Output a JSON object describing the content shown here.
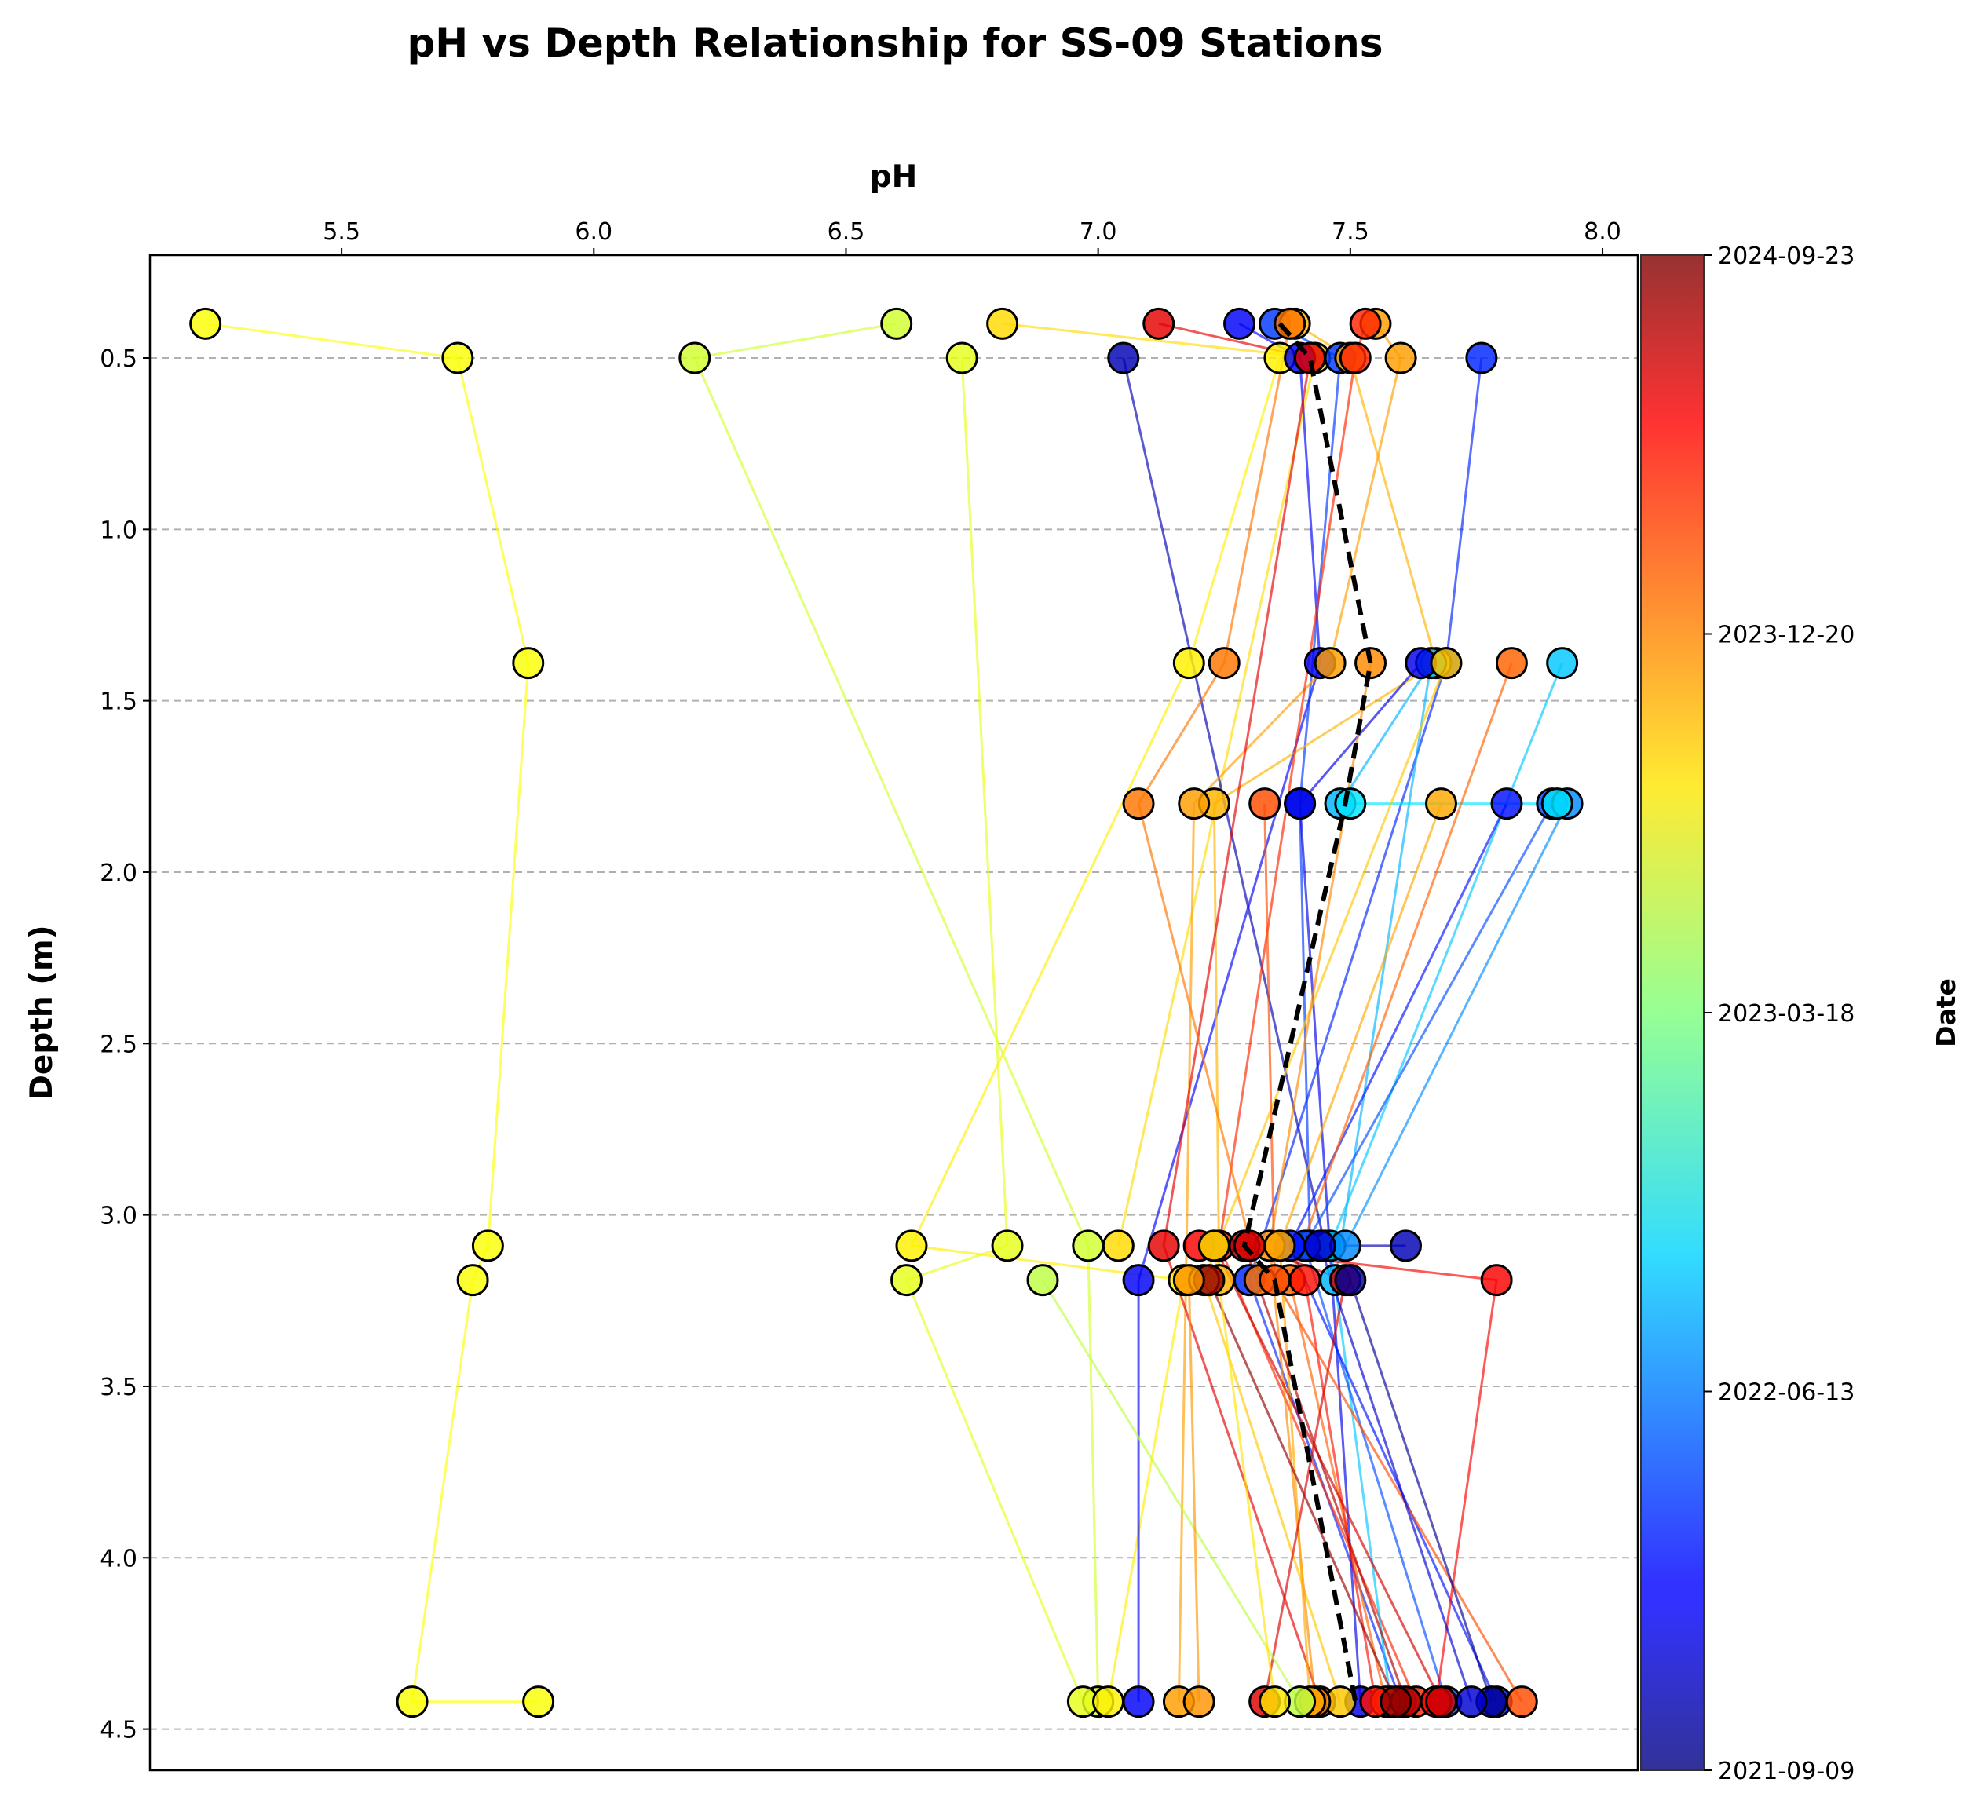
{
  "chart_data": {
    "type": "scatter",
    "title": "pH vs Depth Relationship for SS-09 Stations",
    "xlabel": "pH",
    "ylabel": "Depth (m)",
    "colorbar_label": "Date",
    "xlim": [
      5.12,
      8.07
    ],
    "ylim": [
      4.62,
      0.2
    ],
    "x_ticks": [
      "5.5",
      "6.0",
      "6.5",
      "7.0",
      "7.5",
      "8.0"
    ],
    "y_ticks": [
      "0.5",
      "1.0",
      "1.5",
      "2.0",
      "2.5",
      "3.0",
      "3.5",
      "4.0",
      "4.5"
    ],
    "x_axis_position": "top",
    "y_axis_inverted": true,
    "grid": "horizontal dashed",
    "colormap": "jet",
    "colorbar_ticks": [
      "2021-09-09",
      "2022-06-13",
      "2023-03-18",
      "2023-12-20",
      "2024-09-23"
    ],
    "mean_profile": {
      "style": "black dashed",
      "points": [
        [
          7.36,
          0.4
        ],
        [
          7.42,
          0.5
        ],
        [
          7.54,
          1.39
        ],
        [
          7.49,
          1.8
        ],
        [
          7.29,
          3.09
        ],
        [
          7.35,
          3.19
        ],
        [
          7.51,
          4.42
        ]
      ]
    },
    "profiles": [
      {
        "t": 0.62,
        "points": [
          [
            5.23,
            0.4
          ],
          [
            5.73,
            0.5
          ],
          [
            5.87,
            1.39
          ],
          [
            5.79,
            3.09
          ],
          [
            5.76,
            3.19
          ],
          [
            5.64,
            4.42
          ],
          [
            5.89,
            4.42
          ]
        ]
      },
      {
        "t": 0.58,
        "points": [
          [
            6.6,
            0.4
          ],
          [
            6.2,
            0.5
          ],
          [
            6.98,
            3.09
          ],
          [
            7.0,
            4.42
          ]
        ]
      },
      {
        "t": 0.6,
        "points": [
          [
            6.73,
            0.5
          ],
          [
            6.82,
            3.09
          ],
          [
            6.62,
            3.19
          ],
          [
            6.97,
            4.42
          ]
        ]
      },
      {
        "t": 0.66,
        "points": [
          [
            6.81,
            0.4
          ],
          [
            7.43,
            0.5
          ],
          [
            7.04,
            3.09
          ]
        ]
      },
      {
        "t": 0.64,
        "points": [
          [
            7.36,
            0.5
          ],
          [
            7.18,
            1.39
          ],
          [
            6.63,
            3.09
          ],
          [
            7.17,
            3.19
          ],
          [
            7.02,
            4.42
          ]
        ]
      },
      {
        "t": 0.05,
        "points": [
          [
            7.05,
            0.5
          ],
          [
            7.45,
            3.09
          ],
          [
            7.61,
            3.09
          ]
        ]
      },
      {
        "t": 0.12,
        "points": [
          [
            7.28,
            0.4
          ],
          [
            7.4,
            0.5
          ],
          [
            7.44,
            1.39
          ],
          [
            7.08,
            3.19
          ],
          [
            7.08,
            4.42
          ]
        ]
      },
      {
        "t": 0.16,
        "points": [
          [
            7.76,
            0.5
          ],
          [
            7.69,
            1.39
          ],
          [
            7.3,
            3.19
          ],
          [
            7.6,
            4.42
          ]
        ]
      },
      {
        "t": 0.18,
        "points": [
          [
            7.35,
            0.4
          ],
          [
            7.48,
            0.5
          ],
          [
            7.4,
            1.8
          ],
          [
            7.42,
            3.09
          ]
        ]
      },
      {
        "t": 0.7,
        "points": [
          [
            7.39,
            0.4
          ],
          [
            7.5,
            0.5
          ],
          [
            7.67,
            1.39
          ],
          [
            7.23,
            1.8
          ],
          [
            7.24,
            3.19
          ]
        ]
      },
      {
        "t": 0.72,
        "points": [
          [
            7.55,
            0.4
          ],
          [
            7.6,
            0.5
          ],
          [
            7.46,
            1.39
          ],
          [
            7.19,
            1.8
          ],
          [
            7.16,
            4.42
          ]
        ]
      },
      {
        "t": 0.9,
        "points": [
          [
            7.12,
            0.4
          ],
          [
            7.42,
            0.5
          ],
          [
            7.13,
            3.09
          ],
          [
            7.44,
            4.42
          ]
        ]
      },
      {
        "t": 0.84,
        "points": [
          [
            7.53,
            0.4
          ],
          [
            7.51,
            0.5
          ],
          [
            7.24,
            3.09
          ],
          [
            7.63,
            4.42
          ]
        ]
      },
      {
        "t": 0.76,
        "points": [
          [
            7.38,
            0.4
          ],
          [
            7.25,
            1.39
          ],
          [
            7.08,
            1.8
          ],
          [
            7.32,
            3.19
          ]
        ]
      },
      {
        "t": 0.3,
        "points": [
          [
            7.48,
            1.8
          ],
          [
            7.66,
            1.39
          ],
          [
            7.47,
            3.19
          ]
        ]
      },
      {
        "t": 0.32,
        "points": [
          [
            7.92,
            1.39
          ],
          [
            7.46,
            3.09
          ],
          [
            7.58,
            4.42
          ]
        ]
      },
      {
        "t": 0.1,
        "points": [
          [
            7.64,
            1.39
          ],
          [
            7.4,
            1.8
          ],
          [
            7.52,
            4.42
          ]
        ]
      },
      {
        "t": 0.2,
        "points": [
          [
            7.9,
            1.8
          ],
          [
            7.41,
            3.09
          ],
          [
            7.69,
            4.42
          ]
        ]
      },
      {
        "t": 0.26,
        "points": [
          [
            7.93,
            1.8
          ],
          [
            7.49,
            3.09
          ]
        ]
      },
      {
        "t": 0.14,
        "points": [
          [
            7.81,
            1.8
          ],
          [
            7.38,
            3.09
          ],
          [
            7.79,
            4.42
          ]
        ]
      },
      {
        "t": 0.35,
        "points": [
          [
            7.5,
            1.8
          ],
          [
            7.91,
            1.8
          ]
        ]
      },
      {
        "t": 0.68,
        "points": [
          [
            7.69,
            1.39
          ],
          [
            7.21,
            3.19
          ],
          [
            7.48,
            4.42
          ]
        ]
      },
      {
        "t": 0.74,
        "points": [
          [
            7.54,
            1.39
          ],
          [
            7.34,
            3.09
          ],
          [
            7.43,
            4.42
          ]
        ]
      },
      {
        "t": 0.78,
        "points": [
          [
            7.82,
            1.39
          ],
          [
            7.38,
            3.19
          ],
          [
            7.57,
            4.42
          ]
        ]
      },
      {
        "t": 0.8,
        "points": [
          [
            7.33,
            1.8
          ],
          [
            7.35,
            3.19
          ],
          [
            7.84,
            4.42
          ]
        ]
      },
      {
        "t": 0.71,
        "points": [
          [
            7.68,
            1.8
          ],
          [
            7.36,
            3.09
          ],
          [
            7.42,
            4.42
          ]
        ]
      },
      {
        "t": 0.86,
        "points": [
          [
            7.41,
            3.19
          ],
          [
            7.55,
            4.42
          ]
        ]
      },
      {
        "t": 0.88,
        "points": [
          [
            7.2,
            3.09
          ],
          [
            7.79,
            3.19
          ],
          [
            7.67,
            4.42
          ]
        ]
      },
      {
        "t": 0.92,
        "points": [
          [
            7.23,
            3.09
          ],
          [
            7.68,
            4.42
          ]
        ]
      },
      {
        "t": 0.95,
        "points": [
          [
            7.29,
            3.09
          ],
          [
            7.61,
            4.42
          ]
        ]
      },
      {
        "t": 0.98,
        "points": [
          [
            7.22,
            3.19
          ],
          [
            7.59,
            4.42
          ]
        ]
      },
      {
        "t": 0.91,
        "points": [
          [
            7.3,
            3.09
          ],
          [
            7.49,
            3.19
          ],
          [
            7.33,
            4.42
          ]
        ]
      },
      {
        "t": 0.56,
        "points": [
          [
            6.89,
            3.19
          ],
          [
            7.4,
            4.42
          ]
        ]
      },
      {
        "t": 0.65,
        "points": [
          [
            7.23,
            3.09
          ],
          [
            7.35,
            4.42
          ]
        ]
      },
      {
        "t": 0.73,
        "points": [
          [
            7.18,
            3.19
          ],
          [
            7.2,
            4.42
          ]
        ]
      },
      {
        "t": 0.02,
        "points": [
          [
            7.5,
            3.19
          ],
          [
            7.78,
            4.42
          ]
        ]
      },
      {
        "t": 0.08,
        "points": [
          [
            7.44,
            3.09
          ],
          [
            7.74,
            4.42
          ]
        ]
      }
    ]
  },
  "colors": {
    "mean_line": "#000000",
    "grid": "#b0b0b0",
    "marker_edge": "#000000"
  }
}
